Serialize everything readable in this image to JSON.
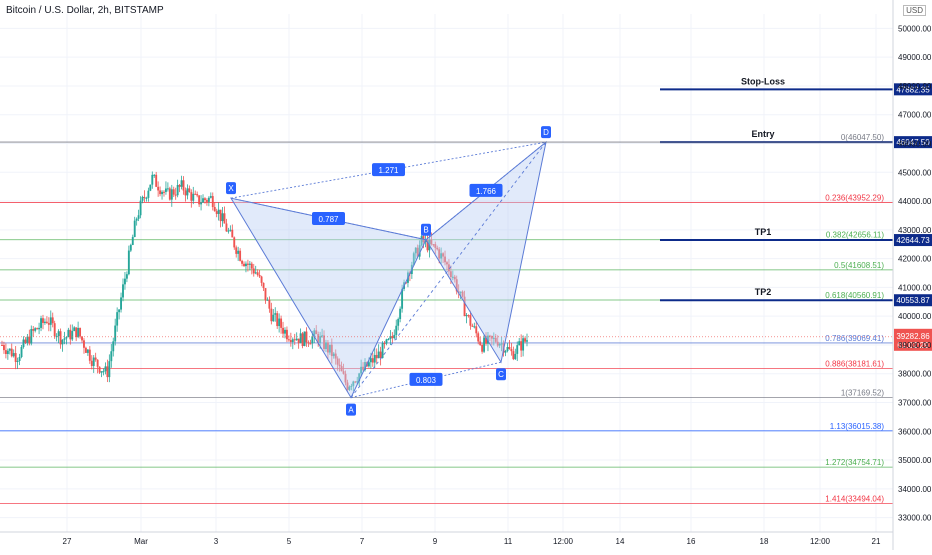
{
  "header": {
    "title": "Bitcoin / U.S. Dollar, 2h, BITSTAMP",
    "currency": "USD"
  },
  "colors": {
    "up": "#26a69a",
    "down": "#ef5350",
    "fib_line": "#5b7bd6",
    "pattern_fill": "#bcd0f3",
    "pattern_stroke": "#5b7bd6",
    "level": "#0d2b8a",
    "label_bg": "#2962ff"
  },
  "chart_data": {
    "type": "candlestick",
    "x_ticks": [
      "27",
      "Mar",
      "3",
      "5",
      "7",
      "9",
      "11",
      "12:00",
      "14",
      "16",
      "18",
      "12:00",
      "21"
    ],
    "y_ticks": [
      "50000.00",
      "49000.00",
      "48000.00",
      "47000.00",
      "46000.00",
      "45000.00",
      "44000.00",
      "43000.00",
      "42000.00",
      "41000.00",
      "40000.00",
      "39000.00",
      "38000.00",
      "37000.00",
      "36000.00",
      "35000.00",
      "34000.00",
      "33000.00"
    ],
    "ylim": [
      32500,
      50500
    ],
    "price_path": [
      39000,
      38600,
      39400,
      39900,
      39200,
      39500,
      38500,
      38000,
      40800,
      43500,
      44800,
      44200,
      44500,
      44000,
      44100,
      43000,
      42000,
      41500,
      40000,
      39400,
      39200,
      39300,
      38700,
      37600,
      38100,
      38600,
      39200,
      41500,
      42600,
      42300,
      41500,
      40000,
      39000,
      39200,
      38700,
      39200
    ],
    "harmonic_points": [
      {
        "label": "X",
        "x_index": 15,
        "price": 44100
      },
      {
        "label": "A",
        "x_index": 23,
        "price": 37169.52
      },
      {
        "label": "B",
        "x_index": 28,
        "price": 42656
      },
      {
        "label": "C",
        "x_index": 33,
        "price": 38400
      },
      {
        "label": "D",
        "x_index": 36,
        "price": 46047.5
      }
    ],
    "ratios": [
      {
        "text": "1.271",
        "from": "X",
        "to": "D"
      },
      {
        "text": "0.787",
        "from": "X",
        "to": "B"
      },
      {
        "text": "1.766",
        "from": "B",
        "to": "D"
      },
      {
        "text": "0.803",
        "from": "A",
        "to": "C"
      }
    ],
    "fib_levels": [
      {
        "text": "0(46047.50)",
        "price": 46047.5,
        "color": "#787b86"
      },
      {
        "text": "0.236(43952.29)",
        "price": 43952.29,
        "color": "#f23645"
      },
      {
        "text": "0.382(42656.11)",
        "price": 42656.11,
        "color": "#4caf50"
      },
      {
        "text": "0.5(41608.51)",
        "price": 41608.51,
        "color": "#4caf50"
      },
      {
        "text": "0.618(40560.91)",
        "price": 40560.91,
        "color": "#4caf50"
      },
      {
        "text": "0.786(39069.41)",
        "price": 39069.41,
        "color": "#5b7bd6"
      },
      {
        "text": "0.886(38181.61)",
        "price": 38181.61,
        "color": "#f23645"
      },
      {
        "text": "1(37169.52)",
        "price": 37169.52,
        "color": "#787b86"
      },
      {
        "text": "1.13(36015.38)",
        "price": 36015.38,
        "color": "#2962ff"
      },
      {
        "text": "1.272(34754.71)",
        "price": 34754.71,
        "color": "#4caf50"
      },
      {
        "text": "1.414(33494.04)",
        "price": 33494.04,
        "color": "#f23645"
      }
    ],
    "trade_levels": [
      {
        "label": "Stop-Loss",
        "price": 47882.35,
        "tag": "47882.35"
      },
      {
        "label": "Entry",
        "price": 46047.5,
        "tag": "46047.50"
      },
      {
        "label": "TP1",
        "price": 42644.73,
        "tag": "42644.73"
      },
      {
        "label": "TP2",
        "price": 40553.87,
        "tag": "40553.87"
      }
    ],
    "current_price": {
      "price": 39282.86,
      "tag": "39282.86",
      "countdown": "01:02:29"
    }
  }
}
